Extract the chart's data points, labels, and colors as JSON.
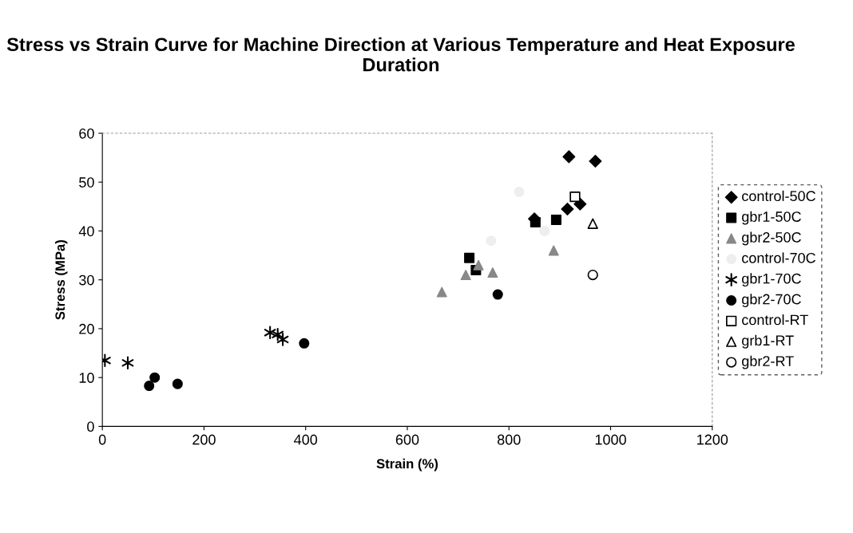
{
  "chart_data": {
    "type": "scatter",
    "title": "Stress vs Strain Curve for Machine Direction at Various Temperature and Heat Exposure Duration",
    "xlabel": "Strain (%)",
    "ylabel": "Stress (MPa)",
    "xlim": [
      0,
      1200
    ],
    "xticks": [
      0,
      200,
      400,
      600,
      800,
      1000,
      1200
    ],
    "ylim": [
      0,
      60
    ],
    "yticks": [
      0,
      10,
      20,
      30,
      40,
      50,
      60
    ],
    "grid": false,
    "legend": "right",
    "series": [
      {
        "name": "control-50C",
        "color": "#000000",
        "marker": "diamond",
        "x": [
          850,
          915,
          918,
          940,
          970
        ],
        "values": [
          42.5,
          44.5,
          55.2,
          45.5,
          54.3
        ]
      },
      {
        "name": "gbr1-50C",
        "color": "#000000",
        "marker": "square",
        "x": [
          722,
          735,
          852,
          893
        ],
        "values": [
          34.5,
          32,
          41.8,
          42.3
        ]
      },
      {
        "name": "gbr2-50C",
        "color": "#888888",
        "marker": "triangle",
        "x": [
          668,
          715,
          740,
          768,
          888
        ],
        "values": [
          27.5,
          31,
          33,
          31.5,
          36
        ]
      },
      {
        "name": "control-70C",
        "color": "#eeeeee",
        "marker": "circle",
        "x": [
          765,
          820,
          870
        ],
        "values": [
          38,
          48,
          40
        ]
      },
      {
        "name": "gbr1-70C",
        "color": "#000000",
        "marker": "cross",
        "x": [
          5,
          50,
          330,
          345,
          355
        ],
        "values": [
          13.5,
          13,
          19.2,
          18.8,
          17.8
        ]
      },
      {
        "name": "gbr2-70C",
        "color": "#000000",
        "marker": "circle",
        "x": [
          92,
          103,
          148,
          397,
          778
        ],
        "values": [
          8.3,
          10,
          8.7,
          17,
          27
        ]
      },
      {
        "name": "control-RT",
        "color": "#ffffff",
        "marker": "square",
        "x": [
          930
        ],
        "values": [
          47
        ]
      },
      {
        "name": "grb1-RT",
        "color": "#ffffff",
        "marker": "triangle",
        "x": [
          965
        ],
        "values": [
          41.5
        ]
      },
      {
        "name": "gbr2-RT",
        "color": "#ffffff",
        "marker": "circle",
        "x": [
          965
        ],
        "values": [
          31
        ]
      }
    ]
  }
}
